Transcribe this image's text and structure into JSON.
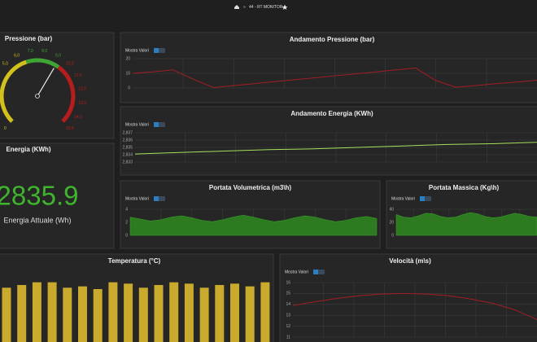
{
  "breadcrumb": {
    "separator": "»",
    "title": "44 - RT MONITOR"
  },
  "toggle_label": "Mostra Valori",
  "gauge": {
    "title": "Pressione (bar)",
    "min": 0,
    "max": 15,
    "value": 9.2,
    "ticks": [
      0,
      {
        "value": 5,
        "label": "5,0"
      },
      {
        "value": 6,
        "label": "6,0"
      },
      {
        "value": 7,
        "label": "7,0"
      },
      {
        "value": 8,
        "label": "8,0"
      },
      {
        "value": 9,
        "label": "9,0"
      },
      {
        "value": 10,
        "label": "10,0"
      },
      {
        "value": 11,
        "label": "11,0"
      },
      {
        "value": 12,
        "label": "12,0"
      },
      {
        "value": 13,
        "label": "13,0"
      },
      {
        "value": 14,
        "label": "14,0"
      },
      {
        "value": 15,
        "label": "15,0"
      }
    ],
    "bands": [
      {
        "from": 0,
        "to": 6.5,
        "color": "#d2c11c"
      },
      {
        "from": 6.5,
        "to": 9.5,
        "color": "#3fa535"
      },
      {
        "from": 9.5,
        "to": 15,
        "color": "#b81d1d"
      }
    ]
  },
  "energy": {
    "title": "Energia (KWh)",
    "value": 2835.9,
    "caption": "Energia Attuale (Wh)",
    "color": "#3fb52e"
  },
  "chart_data": [
    {
      "type": "line",
      "title": "Andamento Pressione (bar)",
      "color": "#a31d26",
      "ylim": [
        0,
        20
      ],
      "yticks": [
        0,
        10,
        20
      ],
      "grid": true,
      "values": [
        10,
        11,
        12.3,
        6,
        0.3,
        1.6,
        2.9,
        4.3,
        5.6,
        6.9,
        8.3,
        9.6,
        10.9,
        12.3,
        13.6,
        5,
        0.5,
        1.7,
        3,
        4,
        5.3
      ]
    },
    {
      "type": "line",
      "title": "Andamento Energia (KWh)",
      "color": "#a6e05c",
      "ylim": [
        2.833,
        2.837
      ],
      "grid": true,
      "yticks": [
        {
          "value": 2.833,
          "label": "2,833"
        },
        {
          "value": 2.834,
          "label": "2,834"
        },
        {
          "value": 2.835,
          "label": "2,835"
        },
        {
          "value": 2.836,
          "label": "2,836"
        },
        {
          "value": 2.837,
          "label": "2,837"
        }
      ],
      "values": [
        2.8341,
        2.8343,
        2.8345,
        2.8347,
        2.8348,
        2.835,
        2.8352,
        2.8354,
        2.8355,
        2.8357
      ]
    },
    {
      "type": "area",
      "title": "Portata Volumetrica (m3\\h)",
      "color": "#2f8a20",
      "ylim": [
        0,
        4
      ],
      "yticks": [
        0,
        2,
        4
      ],
      "grid": true,
      "values": [
        2.8,
        2.5,
        2.2,
        2.4,
        2.8,
        3,
        2.7,
        2.3,
        2.1,
        2.4,
        2.8,
        3.1,
        2.8,
        2.4,
        2.1,
        2.3,
        2.7,
        3,
        2.8,
        2.4,
        2.1,
        2.3,
        2.7,
        2.9,
        2.6
      ]
    },
    {
      "type": "area",
      "title": "Portata Massica (Kg\\h)",
      "color": "#2f8a20",
      "ylim": [
        0,
        40
      ],
      "yticks": [
        0,
        20,
        40
      ],
      "grid": true,
      "values": [
        32,
        28,
        27,
        30,
        34,
        33,
        29,
        27,
        28,
        32,
        35,
        33,
        29,
        27,
        28,
        31,
        34,
        32,
        29,
        28
      ]
    },
    {
      "type": "bar",
      "title": "Temperatura (°C)",
      "color": "#c9aa2c",
      "ylim": [
        0,
        30
      ],
      "values": [
        26,
        27,
        28,
        28,
        26,
        26.5,
        25.5,
        28,
        27.5,
        26,
        27,
        28,
        27.5,
        26,
        27,
        27.5,
        26.5,
        28
      ]
    },
    {
      "type": "line",
      "title": "Velocità (m\\s)",
      "color": "#a31d26",
      "ylim": [
        11,
        16
      ],
      "yticks": [
        11,
        12,
        13,
        14,
        15,
        16
      ],
      "grid": true,
      "values": [
        13.9,
        14.25,
        14.55,
        14.8,
        14.95,
        15,
        14.95,
        14.8,
        14.5,
        14.1,
        13.5,
        12.6
      ]
    }
  ]
}
